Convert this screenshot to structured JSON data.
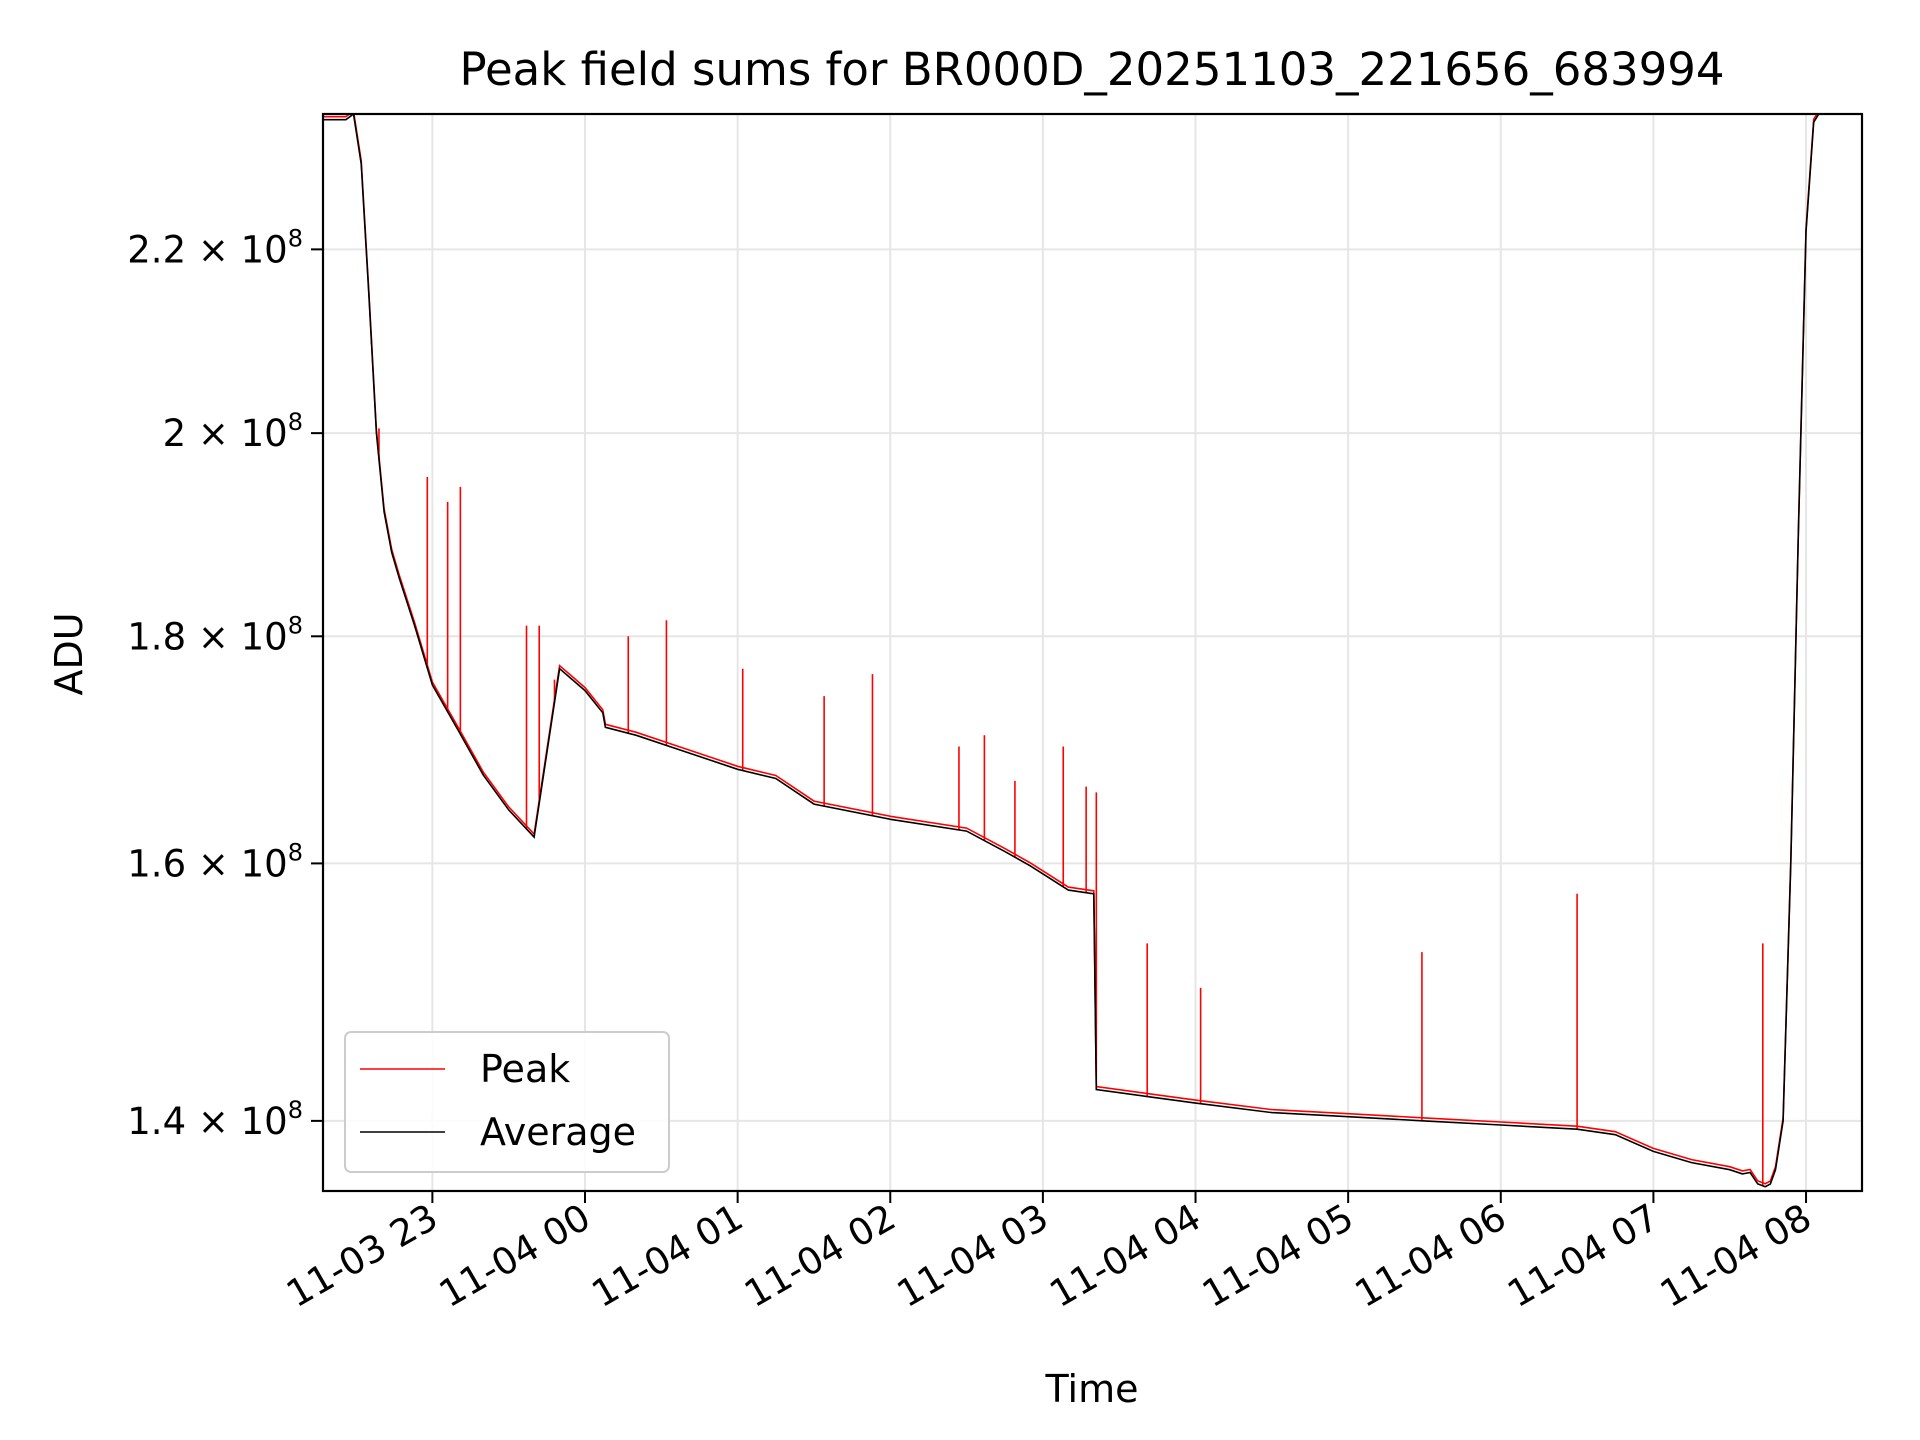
{
  "chart_data": {
    "type": "line",
    "title": "Peak field sums for BR000D_20251103_221656_683994",
    "xlabel": "Time",
    "ylabel": "ADU",
    "yscale": "log",
    "xlim": [
      "2025-11-03 22:17",
      "2025-11-04 08:22"
    ],
    "ylim": [
      135000000,
      236000000
    ],
    "grid": true,
    "legend_position": "lower-left",
    "x_ticks": [
      {
        "t": "2025-11-03 23:00",
        "label": "11-03 23"
      },
      {
        "t": "2025-11-04 00:00",
        "label": "11-04 00"
      },
      {
        "t": "2025-11-04 01:00",
        "label": "11-04 01"
      },
      {
        "t": "2025-11-04 02:00",
        "label": "11-04 02"
      },
      {
        "t": "2025-11-04 03:00",
        "label": "11-04 03"
      },
      {
        "t": "2025-11-04 04:00",
        "label": "11-04 04"
      },
      {
        "t": "2025-11-04 05:00",
        "label": "11-04 05"
      },
      {
        "t": "2025-11-04 06:00",
        "label": "11-04 06"
      },
      {
        "t": "2025-11-04 07:00",
        "label": "11-04 07"
      },
      {
        "t": "2025-11-04 08:00",
        "label": "11-04 08"
      }
    ],
    "y_ticks": [
      {
        "value": 140000000,
        "mantissa": "1.4",
        "exp": "8"
      },
      {
        "value": 160000000,
        "mantissa": "1.6",
        "exp": "8"
      },
      {
        "value": 180000000,
        "mantissa": "1.8",
        "exp": "8"
      },
      {
        "value": 200000000,
        "mantissa": "2",
        "exp": "8"
      },
      {
        "value": 220000000,
        "mantissa": "2.2",
        "exp": "8"
      }
    ],
    "series": [
      {
        "name": "Average",
        "color": "#000000",
        "x": [
          "2025-11-03 22:17",
          "2025-11-03 22:26",
          "2025-11-03 22:29",
          "2025-11-03 22:32",
          "2025-11-03 22:35",
          "2025-11-03 22:38",
          "2025-11-03 22:41",
          "2025-11-03 22:44",
          "2025-11-03 22:47",
          "2025-11-03 22:53",
          "2025-11-03 23:00",
          "2025-11-03 23:10",
          "2025-11-03 23:20",
          "2025-11-03 23:30",
          "2025-11-03 23:40",
          "2025-11-03 23:50",
          "2025-11-04 00:00",
          "2025-11-04 00:07",
          "2025-11-04 00:08",
          "2025-11-04 00:20",
          "2025-11-04 00:40",
          "2025-11-04 01:00",
          "2025-11-04 01:15",
          "2025-11-04 01:30",
          "2025-11-04 02:00",
          "2025-11-04 02:30",
          "2025-11-04 02:45",
          "2025-11-04 02:55",
          "2025-11-04 03:10",
          "2025-11-04 03:20",
          "2025-11-04 03:21",
          "2025-11-04 03:40",
          "2025-11-04 04:00",
          "2025-11-04 04:30",
          "2025-11-04 05:00",
          "2025-11-04 05:30",
          "2025-11-04 06:00",
          "2025-11-04 06:30",
          "2025-11-04 06:45",
          "2025-11-04 07:00",
          "2025-11-04 07:15",
          "2025-11-04 07:30",
          "2025-11-04 07:35",
          "2025-11-04 07:38",
          "2025-11-04 07:41",
          "2025-11-04 07:44",
          "2025-11-04 07:46",
          "2025-11-04 07:48",
          "2025-11-04 07:51",
          "2025-11-04 07:54",
          "2025-11-04 07:57",
          "2025-11-04 08:00",
          "2025-11-04 08:03",
          "2025-11-04 08:05",
          "2025-11-04 08:22"
        ],
        "y": [
          235300000,
          235300000,
          236000000,
          230000000,
          215000000,
          200000000,
          192000000,
          188000000,
          185500000,
          181000000,
          175500000,
          171500000,
          167500000,
          164500000,
          162200000,
          177000000,
          175000000,
          173000000,
          171700000,
          171000000,
          169500000,
          168000000,
          167200000,
          165000000,
          163700000,
          162700000,
          161000000,
          159800000,
          157800000,
          157500000,
          142300000,
          141800000,
          141300000,
          140600000,
          140300000,
          140000000,
          139700000,
          139400000,
          139000000,
          137800000,
          137000000,
          136500000,
          136200000,
          136300000,
          135500000,
          135300000,
          135500000,
          136500000,
          140000000,
          160000000,
          190000000,
          222000000,
          235000000,
          236000000,
          236000000
        ]
      },
      {
        "name": "Peak",
        "color": "#ff0000",
        "spikes": [
          {
            "t": "2025-11-03 22:36",
            "peak": 209500000
          },
          {
            "t": "2025-11-03 22:39",
            "peak": 200500000
          },
          {
            "t": "2025-11-03 22:58",
            "peak": 195500000
          },
          {
            "t": "2025-11-03 23:06",
            "peak": 193000000
          },
          {
            "t": "2025-11-03 23:11",
            "peak": 194500000
          },
          {
            "t": "2025-11-03 23:37",
            "peak": 181000000
          },
          {
            "t": "2025-11-03 23:42",
            "peak": 181000000
          },
          {
            "t": "2025-11-03 23:48",
            "peak": 176000000
          },
          {
            "t": "2025-11-04 00:17",
            "peak": 180000000
          },
          {
            "t": "2025-11-04 00:32",
            "peak": 181500000
          },
          {
            "t": "2025-11-04 01:02",
            "peak": 177000000
          },
          {
            "t": "2025-11-04 01:34",
            "peak": 174500000
          },
          {
            "t": "2025-11-04 01:53",
            "peak": 176500000
          },
          {
            "t": "2025-11-04 02:27",
            "peak": 170000000
          },
          {
            "t": "2025-11-04 02:37",
            "peak": 171000000
          },
          {
            "t": "2025-11-04 02:49",
            "peak": 167000000
          },
          {
            "t": "2025-11-04 03:08",
            "peak": 170000000
          },
          {
            "t": "2025-11-04 03:17",
            "peak": 166500000
          },
          {
            "t": "2025-11-04 03:21",
            "peak": 166000000
          },
          {
            "t": "2025-11-04 03:41",
            "peak": 153500000
          },
          {
            "t": "2025-11-04 04:02",
            "peak": 150000000
          },
          {
            "t": "2025-11-04 05:29",
            "peak": 152800000
          },
          {
            "t": "2025-11-04 06:30",
            "peak": 157500000
          },
          {
            "t": "2025-11-04 07:43",
            "peak": 153500000
          }
        ]
      }
    ]
  }
}
